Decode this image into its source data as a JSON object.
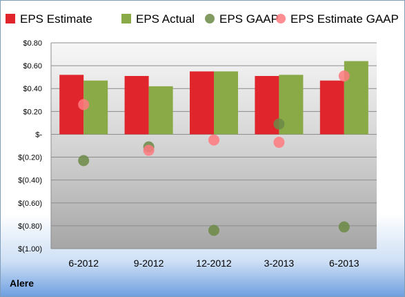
{
  "company": "Alere",
  "colors": {
    "eps_estimate": "#e0262c",
    "eps_actual": "#8aaa48",
    "eps_gaap": "#6b8a45",
    "eps_estimate_gaap": "#ff7a80"
  },
  "chart_data": {
    "type": "bar",
    "title": "",
    "xlabel": "",
    "ylabel": "",
    "ylim": [
      -1.0,
      0.8
    ],
    "y_ticks": [
      {
        "value": 0.8,
        "label": "$0.80"
      },
      {
        "value": 0.6,
        "label": "$0.60"
      },
      {
        "value": 0.4,
        "label": "$0.40"
      },
      {
        "value": 0.2,
        "label": "$0.20"
      },
      {
        "value": 0.0,
        "label": "$-"
      },
      {
        "value": -0.2,
        "label": "$(0.20)"
      },
      {
        "value": -0.4,
        "label": "$(0.40)"
      },
      {
        "value": -0.6,
        "label": "$(0.60)"
      },
      {
        "value": -0.8,
        "label": "$(0.80)"
      },
      {
        "value": -1.0,
        "label": "$(1.00)"
      }
    ],
    "categories": [
      "6-2012",
      "9-2012",
      "12-2012",
      "3-2013",
      "6-2013"
    ],
    "legend_position": "top",
    "series": [
      {
        "name": "EPS Estimate",
        "type": "bar",
        "values": [
          0.52,
          0.51,
          0.55,
          0.51,
          0.47
        ]
      },
      {
        "name": "EPS Actual",
        "type": "bar",
        "values": [
          0.47,
          0.42,
          0.55,
          0.52,
          0.64
        ]
      },
      {
        "name": "EPS GAAP",
        "type": "scatter",
        "values": [
          -0.23,
          -0.11,
          -0.84,
          0.09,
          -0.81
        ]
      },
      {
        "name": "EPS Estimate GAAP",
        "type": "scatter",
        "values": [
          0.26,
          -0.14,
          -0.05,
          -0.07,
          0.51
        ]
      }
    ]
  }
}
